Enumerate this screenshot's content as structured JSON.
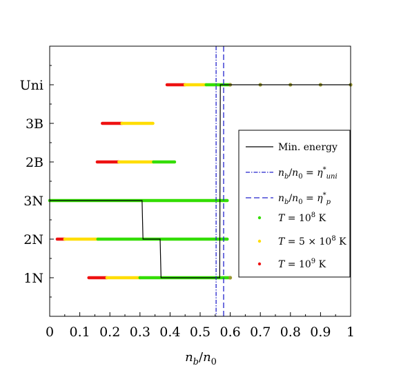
{
  "chart_data": {
    "type": "scatter",
    "x_ticks": [
      "0",
      "0.1",
      "0.2",
      "0.3",
      "0.4",
      "0.5",
      "0.6",
      "0.7",
      "0.8",
      "0.9",
      "1"
    ],
    "xlim": [
      0,
      1
    ],
    "categories": [
      "1N",
      "2N",
      "3N",
      "2B",
      "3B",
      "Uni"
    ],
    "xlabel_parts": {
      "a": "n",
      "a_sub": "b",
      "slash": "/",
      "b": "n",
      "b_sub": "0"
    },
    "grid": false,
    "legend_position": "center-right",
    "colors": {
      "low_T": "#33dd00",
      "mid_T": "#ffdd00",
      "high_T": "#ee1111",
      "min_energy": "#000000",
      "eta_uni": "#2222cc",
      "eta_p": "#2222cc"
    },
    "legend": {
      "min_energy": "Min. energy",
      "eta_uni": "nb/n0 = η*uni",
      "eta_p": "nb/n0 = η*p",
      "low_T": "T = 10^8 K",
      "mid_T": "T = 5 × 10^8 K",
      "high_T": "T = 10^9 K"
    },
    "vlines": [
      {
        "name": "eta_uni",
        "x": 0.553,
        "style": "dashdot"
      },
      {
        "name": "eta_p",
        "x": 0.578,
        "style": "dashed"
      }
    ],
    "min_energy_path": [
      [
        0,
        3
      ],
      [
        0.307,
        3
      ],
      [
        0.31,
        2
      ],
      [
        0.367,
        2
      ],
      [
        0.37,
        1
      ],
      [
        0.565,
        1
      ],
      [
        0.567,
        6
      ],
      [
        1,
        6
      ]
    ],
    "series": [
      {
        "name": "T = 10^8 K",
        "color_key": "low_T",
        "bands": [
          {
            "phase": "1N",
            "range": [
              0.3,
              0.6
            ]
          },
          {
            "phase": "2N",
            "range": [
              0.16,
              0.59
            ]
          },
          {
            "phase": "3N",
            "range": [
              0.0,
              0.59
            ]
          },
          {
            "phase": "2B",
            "range": [
              0.345,
              0.415
            ]
          },
          {
            "phase": "Uni",
            "range": [
              0.52,
              0.6
            ]
          }
        ],
        "extra_points": [
          [
            0.6,
            1
          ],
          [
            0.6,
            6
          ],
          [
            0.7,
            6
          ],
          [
            0.8,
            6
          ],
          [
            0.9,
            6
          ],
          [
            1.0,
            6
          ]
        ]
      },
      {
        "name": "T = 5 × 10^8 K",
        "color_key": "mid_T",
        "bands": [
          {
            "phase": "1N",
            "range": [
              0.19,
              0.3
            ]
          },
          {
            "phase": "2N",
            "range": [
              0.05,
              0.16
            ]
          },
          {
            "phase": "2B",
            "range": [
              0.23,
              0.345
            ]
          },
          {
            "phase": "3B",
            "range": [
              0.24,
              0.343
            ]
          },
          {
            "phase": "Uni",
            "range": [
              0.45,
              0.52
            ]
          }
        ]
      },
      {
        "name": "T = 10^9 K",
        "color_key": "high_T",
        "bands": [
          {
            "phase": "1N",
            "range": [
              0.13,
              0.19
            ]
          },
          {
            "phase": "2N",
            "range": [
              0.025,
              0.05
            ]
          },
          {
            "phase": "2B",
            "range": [
              0.158,
              0.23
            ]
          },
          {
            "phase": "3B",
            "range": [
              0.175,
              0.24
            ]
          },
          {
            "phase": "Uni",
            "range": [
              0.39,
              0.45
            ]
          }
        ]
      }
    ]
  }
}
